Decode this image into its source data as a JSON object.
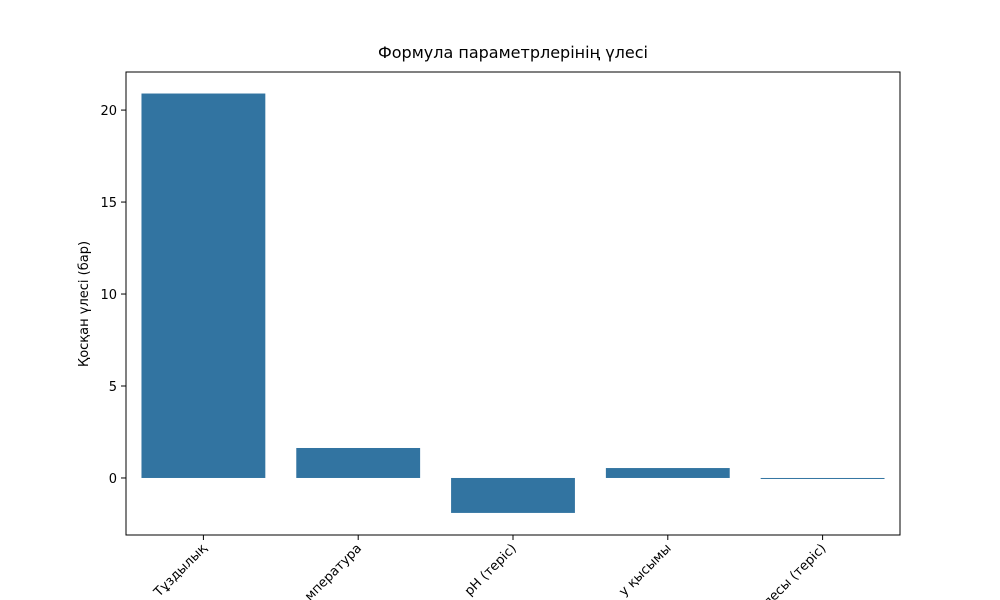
{
  "chart_data": {
    "type": "bar",
    "title": "Формула параметрлерінің үлесі",
    "y_label": "Қосқан үлесі (бар)",
    "categories": [
      "Тұздылық",
      "мпература",
      "pH (теріс)",
      "у қысымы",
      "лесы (теріс)"
    ],
    "values": [
      20.9,
      1.63,
      -1.9,
      0.54,
      -0.05
    ],
    "color": "#3274a1",
    "ylim": [
      -3.1,
      22.07
    ],
    "yticks": [
      0,
      5,
      10,
      15,
      20
    ]
  }
}
